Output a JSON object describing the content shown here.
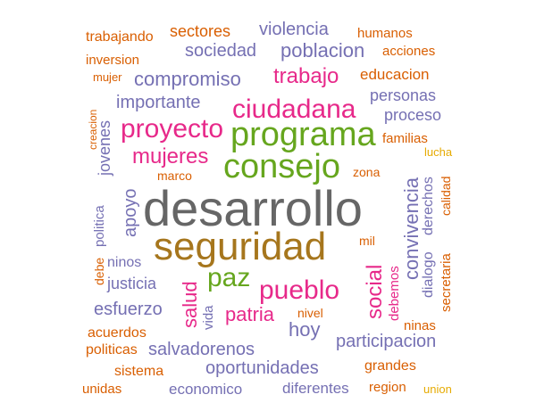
{
  "colors": {
    "purple": "#7570b3",
    "orange": "#d95f02",
    "pink": "#e7298a",
    "green": "#66a61e",
    "gold": "#a6761d",
    "gray": "#666666",
    "yellow": "#e6ab02"
  },
  "words": {
    "desarrollo": "desarrollo",
    "seguridad": "seguridad",
    "programa": "programa",
    "consejo": "consejo",
    "ciudadana": "ciudadana",
    "proyecto": "proyecto",
    "pueblo": "pueblo",
    "paz": "paz",
    "trabajo": "trabajo",
    "mujeres": "mujeres",
    "compromiso": "compromiso",
    "poblacion": "poblacion",
    "violencia": "violencia",
    "sociedad": "sociedad",
    "sectores": "sectores",
    "trabajando": "trabajando",
    "humanos": "humanos",
    "acciones": "acciones",
    "inversion": "inversion",
    "educacion": "educacion",
    "mujer": "mujer",
    "importante": "importante",
    "personas": "personas",
    "proceso": "proceso",
    "creacion": "creacion",
    "jovenes": "jovenes",
    "familias": "familias",
    "lucha": "lucha",
    "convivencia": "convivencia",
    "derechos": "derechos",
    "calidad": "calidad",
    "zona": "zona",
    "marco": "marco",
    "apoyo": "apoyo",
    "politica": "politica",
    "debe": "debe",
    "ninos": "ninos",
    "justicia": "justicia",
    "salud": "salud",
    "vida": "vida",
    "esfuerzo": "esfuerzo",
    "patria": "patria",
    "hoy": "hoy",
    "nivel": "nivel",
    "social": "social",
    "debemos": "debemos",
    "dialogo": "dialogo",
    "secretaria": "secretaria",
    "mil": "mil",
    "ninas": "ninas",
    "acuerdos": "acuerdos",
    "politicas": "politicas",
    "salvadorenos": "salvadorenos",
    "participacion": "participacion",
    "oportunidades": "oportunidades",
    "sistema": "sistema",
    "grandes": "grandes",
    "unidas": "unidas",
    "economico": "economico",
    "diferentes": "diferentes",
    "region": "region",
    "union": "union"
  }
}
